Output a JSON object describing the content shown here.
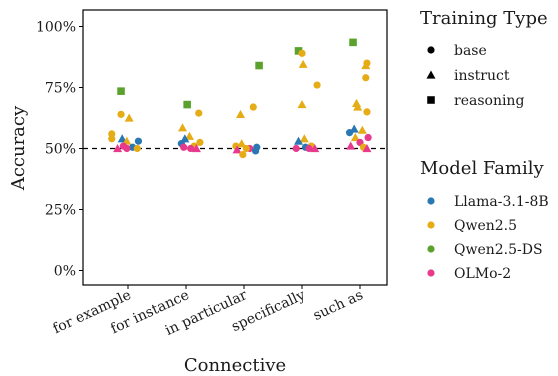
{
  "chart_data": {
    "type": "scatter",
    "xlabel": "Connective",
    "ylabel": "Accuracy",
    "categories": [
      "for example",
      "for instance",
      "in particular",
      "specifically",
      "such as"
    ],
    "y_ticks": [
      "0%",
      "25%",
      "50%",
      "75%",
      "100%"
    ],
    "ylim": [
      0,
      100
    ],
    "reference_line": {
      "value": 50,
      "style": "dashed"
    },
    "grid": false,
    "legend_placement": "right",
    "legends": {
      "training_type": {
        "title": "Training Type",
        "items": [
          {
            "label": "base",
            "shape": "circle"
          },
          {
            "label": "instruct",
            "shape": "triangle"
          },
          {
            "label": "reasoning",
            "shape": "square"
          }
        ]
      },
      "model_family": {
        "title": "Model Family",
        "items": [
          {
            "label": "Llama-3.1-8B",
            "color": "#2a78b3"
          },
          {
            "label": "Qwen2.5",
            "color": "#e6ac16"
          },
          {
            "label": "Qwen2.5-DS",
            "color": "#5aa22d"
          },
          {
            "label": "OLMo-2",
            "color": "#e83a8c"
          }
        ]
      }
    },
    "points": [
      {
        "x": "for example",
        "offset": -0.12,
        "y": 73.5,
        "family": "Qwen2.5-DS",
        "type": "reasoning"
      },
      {
        "x": "for example",
        "offset": -0.12,
        "y": 64,
        "family": "Qwen2.5",
        "type": "base"
      },
      {
        "x": "for example",
        "offset": 0.02,
        "y": 62.5,
        "family": "Qwen2.5",
        "type": "instruct"
      },
      {
        "x": "for example",
        "offset": -0.28,
        "y": 56,
        "family": "Qwen2.5",
        "type": "base"
      },
      {
        "x": "for example",
        "offset": -0.28,
        "y": 54,
        "family": "Qwen2.5",
        "type": "base"
      },
      {
        "x": "for example",
        "offset": -0.1,
        "y": 54,
        "family": "Llama-3.1-8B",
        "type": "instruct"
      },
      {
        "x": "for example",
        "offset": 0.18,
        "y": 53,
        "family": "Llama-3.1-8B",
        "type": "base"
      },
      {
        "x": "for example",
        "offset": -0.02,
        "y": 53,
        "family": "Qwen2.5",
        "type": "instruct"
      },
      {
        "x": "for example",
        "offset": -0.08,
        "y": 51,
        "family": "OLMo-2",
        "type": "base"
      },
      {
        "x": "for example",
        "offset": 0.08,
        "y": 50.5,
        "family": "Llama-3.1-8B",
        "type": "base"
      },
      {
        "x": "for example",
        "offset": 0.16,
        "y": 50,
        "family": "Qwen2.5",
        "type": "base"
      },
      {
        "x": "for example",
        "offset": -0.02,
        "y": 50,
        "family": "OLMo-2",
        "type": "base"
      },
      {
        "x": "for example",
        "offset": -0.18,
        "y": 50,
        "family": "OLMo-2",
        "type": "instruct"
      },
      {
        "x": "for instance",
        "offset": 0.02,
        "y": 68,
        "family": "Qwen2.5-DS",
        "type": "reasoning"
      },
      {
        "x": "for instance",
        "offset": 0.22,
        "y": 64.5,
        "family": "Qwen2.5",
        "type": "base"
      },
      {
        "x": "for instance",
        "offset": -0.06,
        "y": 58.5,
        "family": "Qwen2.5",
        "type": "instruct"
      },
      {
        "x": "for instance",
        "offset": 0.06,
        "y": 55,
        "family": "Qwen2.5",
        "type": "instruct"
      },
      {
        "x": "for instance",
        "offset": -0.02,
        "y": 54,
        "family": "Llama-3.1-8B",
        "type": "instruct"
      },
      {
        "x": "for instance",
        "offset": 0.24,
        "y": 52.5,
        "family": "Qwen2.5",
        "type": "base"
      },
      {
        "x": "for instance",
        "offset": -0.08,
        "y": 52,
        "family": "Llama-3.1-8B",
        "type": "base"
      },
      {
        "x": "for instance",
        "offset": 0.14,
        "y": 51,
        "family": "Qwen2.5",
        "type": "base"
      },
      {
        "x": "for instance",
        "offset": -0.04,
        "y": 50.5,
        "family": "OLMo-2",
        "type": "base"
      },
      {
        "x": "for instance",
        "offset": 0.08,
        "y": 50,
        "family": "OLMo-2",
        "type": "base"
      },
      {
        "x": "for instance",
        "offset": 0.18,
        "y": 50,
        "family": "OLMo-2",
        "type": "instruct"
      },
      {
        "x": "in particular",
        "offset": 0.26,
        "y": 84,
        "family": "Qwen2.5-DS",
        "type": "reasoning"
      },
      {
        "x": "in particular",
        "offset": 0.16,
        "y": 67,
        "family": "Qwen2.5",
        "type": "base"
      },
      {
        "x": "in particular",
        "offset": -0.06,
        "y": 64,
        "family": "Qwen2.5",
        "type": "instruct"
      },
      {
        "x": "in particular",
        "offset": -0.04,
        "y": 52,
        "family": "Qwen2.5",
        "type": "instruct"
      },
      {
        "x": "in particular",
        "offset": -0.14,
        "y": 51,
        "family": "Qwen2.5",
        "type": "base"
      },
      {
        "x": "in particular",
        "offset": 0.22,
        "y": 50.5,
        "family": "Llama-3.1-8B",
        "type": "base"
      },
      {
        "x": "in particular",
        "offset": 0.1,
        "y": 50,
        "family": "OLMo-2",
        "type": "base"
      },
      {
        "x": "in particular",
        "offset": 0.04,
        "y": 50,
        "family": "Qwen2.5",
        "type": "base"
      },
      {
        "x": "in particular",
        "offset": -0.12,
        "y": 49.5,
        "family": "OLMo-2",
        "type": "instruct"
      },
      {
        "x": "in particular",
        "offset": 0.2,
        "y": 49,
        "family": "Llama-3.1-8B",
        "type": "base"
      },
      {
        "x": "in particular",
        "offset": -0.02,
        "y": 47.5,
        "family": "Qwen2.5",
        "type": "base"
      },
      {
        "x": "specifically",
        "offset": -0.06,
        "y": 90,
        "family": "Qwen2.5-DS",
        "type": "reasoning"
      },
      {
        "x": "specifically",
        "offset": 0.0,
        "y": 89,
        "family": "Qwen2.5",
        "type": "base"
      },
      {
        "x": "specifically",
        "offset": 0.02,
        "y": 84.5,
        "family": "Qwen2.5",
        "type": "instruct"
      },
      {
        "x": "specifically",
        "offset": 0.26,
        "y": 76,
        "family": "Qwen2.5",
        "type": "base"
      },
      {
        "x": "specifically",
        "offset": 0.0,
        "y": 68,
        "family": "Qwen2.5",
        "type": "instruct"
      },
      {
        "x": "specifically",
        "offset": 0.04,
        "y": 54,
        "family": "Qwen2.5",
        "type": "instruct"
      },
      {
        "x": "specifically",
        "offset": -0.06,
        "y": 53,
        "family": "Llama-3.1-8B",
        "type": "instruct"
      },
      {
        "x": "specifically",
        "offset": 0.16,
        "y": 51,
        "family": "Qwen2.5",
        "type": "base"
      },
      {
        "x": "specifically",
        "offset": 0.06,
        "y": 50.5,
        "family": "Llama-3.1-8B",
        "type": "base"
      },
      {
        "x": "specifically",
        "offset": -0.1,
        "y": 50,
        "family": "OLMo-2",
        "type": "base"
      },
      {
        "x": "specifically",
        "offset": 0.12,
        "y": 50,
        "family": "OLMo-2",
        "type": "base"
      },
      {
        "x": "specifically",
        "offset": 0.22,
        "y": 50,
        "family": "OLMo-2",
        "type": "instruct"
      },
      {
        "x": "such as",
        "offset": -0.12,
        "y": 93.5,
        "family": "Qwen2.5-DS",
        "type": "reasoning"
      },
      {
        "x": "such as",
        "offset": 0.12,
        "y": 85,
        "family": "Qwen2.5",
        "type": "base"
      },
      {
        "x": "such as",
        "offset": 0.1,
        "y": 84,
        "family": "Qwen2.5",
        "type": "instruct"
      },
      {
        "x": "such as",
        "offset": 0.1,
        "y": 79,
        "family": "Qwen2.5",
        "type": "base"
      },
      {
        "x": "such as",
        "offset": -0.06,
        "y": 68.5,
        "family": "Qwen2.5",
        "type": "instruct"
      },
      {
        "x": "such as",
        "offset": -0.04,
        "y": 67,
        "family": "Qwen2.5",
        "type": "instruct"
      },
      {
        "x": "such as",
        "offset": 0.12,
        "y": 65,
        "family": "Qwen2.5",
        "type": "base"
      },
      {
        "x": "such as",
        "offset": -0.1,
        "y": 58,
        "family": "Llama-3.1-8B",
        "type": "instruct"
      },
      {
        "x": "such as",
        "offset": 0.04,
        "y": 57.5,
        "family": "Qwen2.5",
        "type": "instruct"
      },
      {
        "x": "such as",
        "offset": -0.18,
        "y": 56.5,
        "family": "Llama-3.1-8B",
        "type": "base"
      },
      {
        "x": "such as",
        "offset": -0.08,
        "y": 54.5,
        "family": "Qwen2.5",
        "type": "instruct"
      },
      {
        "x": "such as",
        "offset": 0.14,
        "y": 54.5,
        "family": "OLMo-2",
        "type": "base"
      },
      {
        "x": "such as",
        "offset": 0.0,
        "y": 52.5,
        "family": "OLMo-2",
        "type": "base"
      },
      {
        "x": "such as",
        "offset": -0.16,
        "y": 51,
        "family": "OLMo-2",
        "type": "instruct"
      },
      {
        "x": "such as",
        "offset": 0.06,
        "y": 50.5,
        "family": "Qwen2.5",
        "type": "base"
      },
      {
        "x": "such as",
        "offset": 0.12,
        "y": 50,
        "family": "OLMo-2",
        "type": "instruct"
      }
    ]
  }
}
